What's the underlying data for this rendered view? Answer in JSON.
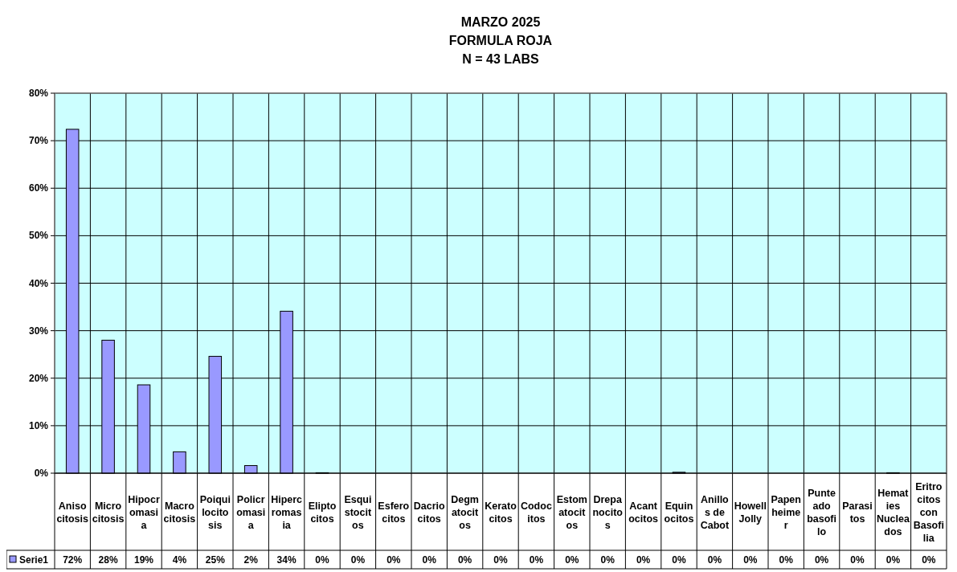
{
  "chart_data": {
    "type": "bar",
    "title": "MARZO 2025\nFORMULA ROJA\nN = 43 LABS",
    "categories": [
      "Aniso\ncitosis",
      "Micro\ncitosis",
      "Hipocr\nomasi\na",
      "Macro\ncitosis",
      "Poiqui\nlocito\nsis",
      "Policr\nomasi\na",
      "Hiperc\nromas\nia",
      "Elipto\ncitos",
      "Esqui\nstocit\nos",
      "Esfero\ncitos",
      "Dacrio\ncitos",
      "Degm\natocit\nos",
      "Kerato\ncitos",
      "Codoc\nitos",
      "Estom\natocit\nos",
      "Drepa\nnocito\ns",
      "Acant\nocitos",
      "Equin\nocitos",
      "Anillo\ns de\nCabot",
      "Howell\nJolly",
      "Papen\nheime\nr",
      "Punte\nado\nbasofi\nlo",
      "Parasi\ntos",
      "Hemat\nies\nNuclea\ndos",
      "Eritro\ncitos\ncon\nBasofi\nlia"
    ],
    "series": [
      {
        "name": "Serie1",
        "color": "#9999ff",
        "values": [
          72.4,
          28.0,
          18.6,
          4.5,
          24.6,
          1.6,
          34.1,
          0.1,
          0,
          0,
          0,
          0,
          0,
          0,
          0,
          0,
          0,
          0.2,
          0,
          0,
          0,
          0,
          0,
          0.1,
          0
        ],
        "value_labels": [
          "72%",
          "28%",
          "19%",
          "4%",
          "25%",
          "2%",
          "34%",
          "0%",
          "0%",
          "0%",
          "0%",
          "0%",
          "0%",
          "0%",
          "0%",
          "0%",
          "0%",
          "0%",
          "0%",
          "0%",
          "0%",
          "0%",
          "0%",
          "0%",
          "0%"
        ]
      }
    ],
    "ylim": [
      0,
      80
    ],
    "yticks": [
      {
        "value": 0,
        "label": "0%"
      },
      {
        "value": 10,
        "label": "10%"
      },
      {
        "value": 20,
        "label": "20%"
      },
      {
        "value": 30,
        "label": "30%"
      },
      {
        "value": 40,
        "label": "40%"
      },
      {
        "value": 50,
        "label": "50%"
      },
      {
        "value": 60,
        "label": "60%"
      },
      {
        "value": 70,
        "label": "70%"
      },
      {
        "value": 80,
        "label": "80%"
      }
    ],
    "grid": true,
    "legend": "bottom left"
  }
}
